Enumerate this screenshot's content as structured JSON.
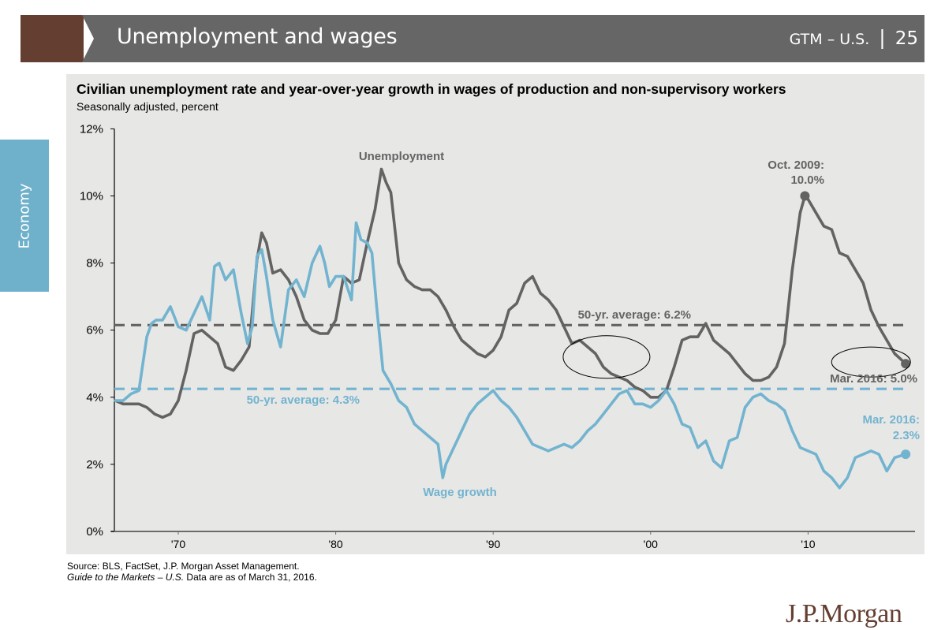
{
  "header": {
    "title": "Unemployment and wages",
    "series_label": "GTM – U.S.",
    "separator": "|",
    "page_number": "25"
  },
  "side_tab": {
    "label": "Economy"
  },
  "colors": {
    "brand_brown": "#643f31",
    "header_gray": "#666666",
    "tab_blue": "#6fb1cb",
    "unemployment": "#636363",
    "wage_growth": "#72b4cf",
    "panel_bg": "#e7e7e6"
  },
  "footer": {
    "source": "Source: BLS, FactSet, J.P. Morgan Asset Management.",
    "guide_italic": "Guide to the Markets – U.S.",
    "data_as_of": " Data are as of March 31, 2016."
  },
  "logo": {
    "text": "J.P.Morgan"
  },
  "chart_data": {
    "type": "line",
    "title": "Civilian unemployment rate and year-over-year growth in wages of production and non-supervisory workers",
    "subtitle": "Seasonally adjusted, percent",
    "xlabel": "",
    "ylabel": "",
    "xlim": [
      1965.9,
      2016.3
    ],
    "ylim": [
      0,
      12
    ],
    "y_ticks": [
      0,
      2,
      4,
      6,
      8,
      10,
      12
    ],
    "y_tick_labels": [
      "0%",
      "2%",
      "4%",
      "6%",
      "8%",
      "10%",
      "12%"
    ],
    "x_ticks": [
      1970,
      1980,
      1990,
      2000,
      2010
    ],
    "x_tick_labels": [
      "'70",
      "'80",
      "'90",
      "'00",
      "'10"
    ],
    "grid": false,
    "series": [
      {
        "name": "Unemployment",
        "color": "#636363",
        "x": [
          1966.0,
          1966.5,
          1967.0,
          1967.5,
          1968.0,
          1968.5,
          1969.0,
          1969.5,
          1970.0,
          1970.5,
          1971.0,
          1971.5,
          1972.0,
          1972.5,
          1973.0,
          1973.5,
          1974.0,
          1974.5,
          1975.0,
          1975.3,
          1975.6,
          1976.0,
          1976.5,
          1977.0,
          1977.5,
          1978.0,
          1978.5,
          1979.0,
          1979.5,
          1980.0,
          1980.5,
          1981.0,
          1981.5,
          1982.0,
          1982.5,
          1982.9,
          1983.2,
          1983.5,
          1984.0,
          1984.5,
          1985.0,
          1985.5,
          1986.0,
          1986.5,
          1987.0,
          1987.5,
          1988.0,
          1988.5,
          1989.0,
          1989.5,
          1990.0,
          1990.5,
          1991.0,
          1991.5,
          1992.0,
          1992.5,
          1993.0,
          1993.5,
          1994.0,
          1994.5,
          1995.0,
          1995.5,
          1996.0,
          1996.5,
          1997.0,
          1997.5,
          1998.0,
          1998.5,
          1999.0,
          1999.5,
          2000.0,
          2000.5,
          2001.0,
          2001.5,
          2002.0,
          2002.5,
          2003.0,
          2003.5,
          2004.0,
          2004.5,
          2005.0,
          2005.5,
          2006.0,
          2006.5,
          2007.0,
          2007.5,
          2008.0,
          2008.5,
          2009.0,
          2009.5,
          2009.8,
          2010.0,
          2010.5,
          2011.0,
          2011.5,
          2012.0,
          2012.5,
          2013.0,
          2013.5,
          2014.0,
          2014.5,
          2015.0,
          2015.5,
          2016.2
        ],
        "values": [
          3.9,
          3.8,
          3.8,
          3.8,
          3.7,
          3.5,
          3.4,
          3.5,
          3.9,
          4.8,
          5.9,
          6.0,
          5.8,
          5.6,
          4.9,
          4.8,
          5.1,
          5.5,
          8.1,
          8.9,
          8.6,
          7.7,
          7.8,
          7.5,
          7.0,
          6.3,
          6.0,
          5.9,
          5.9,
          6.3,
          7.6,
          7.4,
          7.5,
          8.6,
          9.6,
          10.8,
          10.4,
          10.1,
          8.0,
          7.5,
          7.3,
          7.2,
          7.2,
          7.0,
          6.6,
          6.1,
          5.7,
          5.5,
          5.3,
          5.2,
          5.4,
          5.8,
          6.6,
          6.8,
          7.4,
          7.6,
          7.1,
          6.9,
          6.6,
          6.1,
          5.6,
          5.7,
          5.5,
          5.3,
          4.9,
          4.7,
          4.6,
          4.5,
          4.3,
          4.2,
          4.0,
          4.0,
          4.2,
          4.9,
          5.7,
          5.8,
          5.8,
          6.2,
          5.7,
          5.5,
          5.3,
          5.0,
          4.7,
          4.5,
          4.5,
          4.6,
          4.9,
          5.6,
          7.8,
          9.5,
          10.0,
          9.9,
          9.5,
          9.1,
          9.0,
          8.3,
          8.2,
          7.8,
          7.4,
          6.6,
          6.1,
          5.7,
          5.3,
          5.0
        ]
      },
      {
        "name": "Wage growth",
        "color": "#72b4cf",
        "x": [
          1966.0,
          1966.5,
          1967.0,
          1967.5,
          1968.0,
          1968.3,
          1968.6,
          1969.0,
          1969.5,
          1970.0,
          1970.5,
          1971.0,
          1971.5,
          1972.0,
          1972.3,
          1972.6,
          1973.0,
          1973.5,
          1974.0,
          1974.4,
          1974.7,
          1975.0,
          1975.3,
          1975.6,
          1976.0,
          1976.5,
          1977.0,
          1977.5,
          1978.0,
          1978.5,
          1979.0,
          1979.3,
          1979.6,
          1980.0,
          1980.5,
          1981.0,
          1981.3,
          1981.6,
          1982.0,
          1982.3,
          1982.6,
          1983.0,
          1983.5,
          1984.0,
          1984.5,
          1985.0,
          1985.5,
          1986.0,
          1986.5,
          1986.8,
          1987.0,
          1987.5,
          1988.0,
          1988.5,
          1989.0,
          1989.5,
          1990.0,
          1990.5,
          1991.0,
          1991.5,
          1992.0,
          1992.5,
          1993.0,
          1993.5,
          1994.0,
          1994.5,
          1995.0,
          1995.5,
          1996.0,
          1996.5,
          1997.0,
          1997.5,
          1998.0,
          1998.5,
          1999.0,
          1999.5,
          2000.0,
          2000.5,
          2001.0,
          2001.5,
          2002.0,
          2002.5,
          2003.0,
          2003.5,
          2004.0,
          2004.5,
          2005.0,
          2005.5,
          2006.0,
          2006.5,
          2007.0,
          2007.5,
          2008.0,
          2008.5,
          2009.0,
          2009.5,
          2010.0,
          2010.5,
          2011.0,
          2011.5,
          2012.0,
          2012.5,
          2013.0,
          2013.5,
          2014.0,
          2014.5,
          2015.0,
          2015.5,
          2016.2
        ],
        "values": [
          3.9,
          3.9,
          4.1,
          4.2,
          5.8,
          6.2,
          6.3,
          6.3,
          6.7,
          6.1,
          6.0,
          6.5,
          7.0,
          6.3,
          7.9,
          8.0,
          7.5,
          7.8,
          6.5,
          5.6,
          6.1,
          8.2,
          8.4,
          7.6,
          6.3,
          5.5,
          7.2,
          7.5,
          7.0,
          8.0,
          8.5,
          8.0,
          7.3,
          7.6,
          7.6,
          6.9,
          9.2,
          8.7,
          8.6,
          8.3,
          6.7,
          4.8,
          4.4,
          3.9,
          3.7,
          3.2,
          3.0,
          2.8,
          2.6,
          1.6,
          2.0,
          2.5,
          3.0,
          3.5,
          3.8,
          4.0,
          4.2,
          3.9,
          3.7,
          3.4,
          3.0,
          2.6,
          2.5,
          2.4,
          2.5,
          2.6,
          2.5,
          2.7,
          3.0,
          3.2,
          3.5,
          3.8,
          4.1,
          4.2,
          3.8,
          3.8,
          3.7,
          3.9,
          4.2,
          3.8,
          3.2,
          3.1,
          2.5,
          2.7,
          2.1,
          1.9,
          2.7,
          2.8,
          3.7,
          4.0,
          4.1,
          3.9,
          3.8,
          3.6,
          3.0,
          2.5,
          2.4,
          2.3,
          1.8,
          1.6,
          1.3,
          1.6,
          2.2,
          2.3,
          2.4,
          2.3,
          1.8,
          2.2,
          2.3
        ]
      }
    ],
    "reference_lines": [
      {
        "name": "50-yr. average: 6.2%",
        "value": 6.15,
        "series": "Unemployment",
        "style": "dashed"
      },
      {
        "name": "50-yr. average: 4.3%",
        "value": 4.25,
        "series": "Wage growth",
        "style": "dashed"
      }
    ],
    "annotations": [
      {
        "text": [
          "Oct. 2009:",
          "10.0%"
        ],
        "x": 2009.8,
        "y": 10.0,
        "series": "Unemployment",
        "marker": true
      },
      {
        "text": [
          "Mar. 2016: 5.0%"
        ],
        "x": 2016.2,
        "y": 5.0,
        "series": "Unemployment",
        "marker": true
      },
      {
        "text": [
          "Mar. 2016:",
          "2.3%"
        ],
        "x": 2016.2,
        "y": 2.3,
        "series": "Wage growth",
        "marker": true
      },
      {
        "text": [
          "Unemployment"
        ],
        "series": "Unemployment",
        "kind": "series-label"
      },
      {
        "text": [
          "Wage growth"
        ],
        "series": "Wage growth",
        "kind": "series-label"
      }
    ],
    "highlight_ellipses": [
      {
        "center_x": 1997.2,
        "center_y": 5.2
      },
      {
        "center_x": 2014.0,
        "center_y": 5.05
      }
    ]
  }
}
